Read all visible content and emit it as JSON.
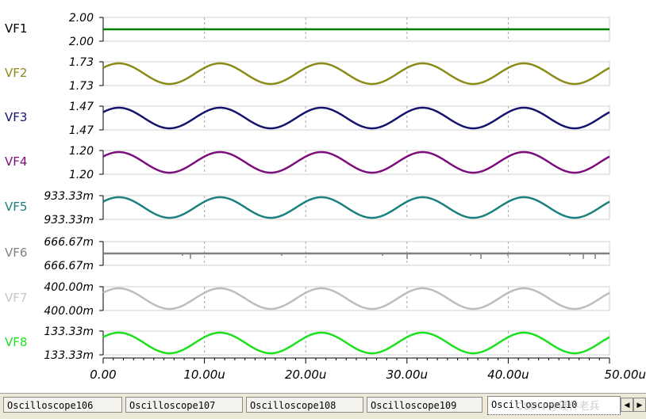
{
  "chart_data": {
    "type": "line",
    "x_ticks": [
      "0.00",
      "10.00u",
      "20.00u",
      "30.00u",
      "40.00u",
      "50.00u"
    ],
    "xlim": [
      0,
      50
    ],
    "period_u": 10,
    "grid": true,
    "channels": [
      {
        "name": "VF1",
        "top_label": "2.00",
        "bottom_label": "2.00",
        "color": "#008000",
        "label_color": "#000000",
        "shape": "flat"
      },
      {
        "name": "VF2",
        "top_label": "1.73",
        "bottom_label": "1.73",
        "color": "#8b8b17",
        "label_color": "#8b8b17",
        "shape": "sine"
      },
      {
        "name": "VF3",
        "top_label": "1.47",
        "bottom_label": "1.47",
        "color": "#14146e",
        "label_color": "#14146e",
        "shape": "sine"
      },
      {
        "name": "VF4",
        "top_label": "1.20",
        "bottom_label": "1.20",
        "color": "#7d0d7d",
        "label_color": "#7d0d7d",
        "shape": "sine"
      },
      {
        "name": "VF5",
        "top_label": "933.33m",
        "bottom_label": "933.33m",
        "color": "#1a8080",
        "label_color": "#1a8080",
        "shape": "sine"
      },
      {
        "name": "VF6",
        "top_label": "666.67m",
        "bottom_label": "666.67m",
        "color": "#808080",
        "label_color": "#808080",
        "shape": "flat-noise"
      },
      {
        "name": "VF7",
        "top_label": "400.00m",
        "bottom_label": "400.00m",
        "color": "#bdbdbd",
        "label_color": "#c8c8c8",
        "shape": "sine"
      },
      {
        "name": "VF8",
        "top_label": "133.33m",
        "bottom_label": "133.33m",
        "color": "#1de01d",
        "label_color": "#1de01d",
        "shape": "sine"
      }
    ]
  },
  "tabs": [
    {
      "label": "Oscilloscope106",
      "active": false
    },
    {
      "label": "Oscilloscope107",
      "active": false
    },
    {
      "label": "Oscilloscope108",
      "active": false
    },
    {
      "label": "Oscilloscope109",
      "active": false
    },
    {
      "label": "Oscilloscope110",
      "active": true
    }
  ],
  "tab_scroll_icons": [
    "scroll-left-icon",
    "scroll-right-icon"
  ],
  "watermark": "CSDN @硬件老兵"
}
